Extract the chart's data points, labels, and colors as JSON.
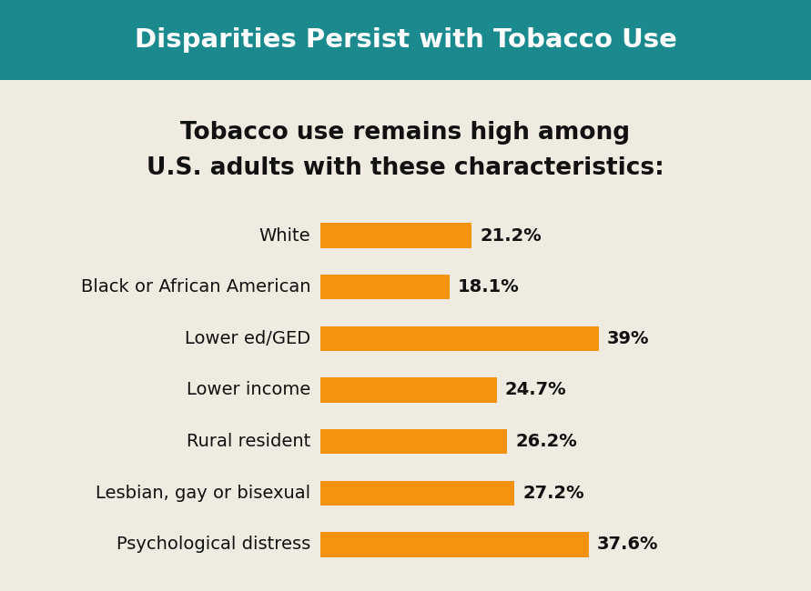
{
  "title": "Disparities Persist with Tobacco Use",
  "title_bg_color": "#1b8a8f",
  "title_text_color": "#ffffff",
  "subtitle_line1": "Tobacco use remains high among",
  "subtitle_line2": "U.S. adults with these characteristics:",
  "subtitle_color": "#111111",
  "background_color": "#f0ebe0",
  "bar_color": "#f59210",
  "categories": [
    "White",
    "Black or African American",
    "Lower ed/GED",
    "Lower income",
    "Rural resident",
    "Lesbian, gay or bisexual",
    "Psychological distress"
  ],
  "values": [
    21.2,
    18.1,
    39.0,
    24.7,
    26.2,
    27.2,
    37.6
  ],
  "labels": [
    "21.2%",
    "18.1%",
    "39%",
    "24.7%",
    "26.2%",
    "27.2%",
    "37.6%"
  ],
  "max_val": 50,
  "label_fontsize": 14,
  "category_fontsize": 14,
  "subtitle_fontsize": 19,
  "title_fontsize": 21
}
